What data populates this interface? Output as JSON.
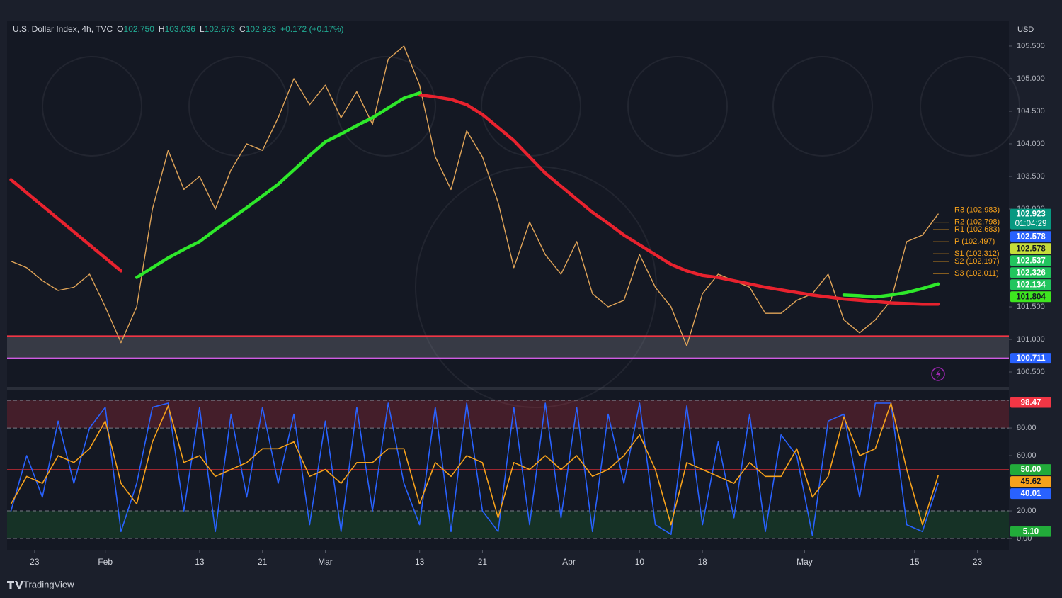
{
  "chart_data": [
    {
      "type": "line",
      "title": "U.S. Dollar Index, 4h, TVC",
      "ohlc": [
        {
          "key": "O",
          "value": {
            "value": 102.75,
            "label": "102.750"
          }
        },
        {
          "key": "H",
          "value": {
            "value": 103.036,
            "label": "103.036"
          }
        },
        {
          "key": "L",
          "value": {
            "value": 102.673,
            "label": "102.673"
          }
        },
        {
          "key": "C",
          "value": {
            "value": 102.923,
            "label": "102.923"
          }
        }
      ],
      "change": "+0.172 (+0.17%)",
      "currency": "USD",
      "x": [
        20,
        22,
        24,
        26,
        28,
        30,
        32,
        34,
        36,
        38,
        40,
        42,
        44,
        46,
        48,
        50,
        52,
        54,
        56,
        58,
        60,
        62,
        64,
        66,
        68,
        70,
        72,
        74,
        76,
        78,
        80,
        82,
        84,
        86,
        88,
        90,
        92,
        94,
        96,
        98,
        100,
        102,
        104,
        106,
        108,
        110,
        112,
        114,
        116,
        118,
        120,
        122,
        124,
        126,
        128,
        130,
        132,
        134,
        136,
        138
      ],
      "xlim": [
        19.5,
        147
      ],
      "ylim": [
        100.337,
        105.88
      ],
      "yticks": [
        {
          "value": 100.5,
          "label": "100.500"
        },
        {
          "value": 101,
          "label": "101.000"
        },
        {
          "value": 101.5,
          "label": "101.500"
        },
        {
          "value": 103,
          "label": "103.000"
        },
        {
          "value": 103.5,
          "label": "103.500"
        },
        {
          "value": 104,
          "label": "104.000"
        },
        {
          "value": 104.5,
          "label": "104.500"
        },
        {
          "value": 105,
          "label": "105.000"
        },
        {
          "value": 105.5,
          "label": "105.500"
        }
      ],
      "series": [
        {
          "color": "#e0a458",
          "values": [
            102.2,
            102.1,
            101.9,
            101.75,
            101.8,
            102.0,
            101.5,
            100.95,
            101.5,
            103.0,
            103.9,
            103.3,
            103.5,
            103.0,
            103.6,
            104.0,
            103.9,
            104.4,
            105.0,
            104.6,
            104.9,
            104.4,
            104.8,
            104.3,
            105.3,
            105.5,
            104.9,
            103.8,
            103.3,
            104.2,
            103.8,
            103.1,
            102.1,
            102.8,
            102.3,
            102.0,
            102.5,
            101.7,
            101.5,
            101.6,
            102.3,
            101.8,
            101.5,
            100.9,
            101.7,
            102.0,
            101.9,
            101.8,
            101.4,
            101.4,
            101.6,
            101.7,
            102.0,
            101.3,
            101.1,
            101.3,
            101.6,
            102.5,
            102.6,
            102.923
          ]
        },
        {
          "color": "#e8222e",
          "values": [
            103.45,
            103.25,
            103.05,
            102.85,
            102.65,
            102.45,
            102.25,
            102.05,
            null,
            null,
            null,
            null,
            null,
            null,
            null,
            null,
            null,
            null,
            null,
            null,
            null,
            null,
            null,
            null,
            null,
            null,
            104.75,
            104.72,
            104.68,
            104.6,
            104.45,
            104.25,
            104.05,
            103.8,
            103.55,
            103.35,
            103.15,
            102.95,
            102.78,
            102.6,
            102.45,
            102.3,
            102.15,
            102.05,
            101.98,
            101.95,
            101.9,
            101.85,
            101.8,
            101.76,
            101.72,
            101.68,
            101.65,
            101.62,
            101.6,
            101.58,
            101.56,
            101.55,
            101.54,
            101.54
          ]
        },
        {
          "color": "#2ee82a",
          "values": [
            null,
            null,
            null,
            null,
            null,
            null,
            null,
            null,
            101.95,
            102.1,
            102.25,
            102.38,
            102.5,
            102.68,
            102.85,
            103.02,
            103.2,
            103.38,
            103.6,
            103.82,
            104.03,
            104.15,
            104.28,
            104.4,
            104.55,
            104.7,
            104.78,
            null,
            null,
            null,
            null,
            null,
            null,
            null,
            null,
            null,
            null,
            null,
            null,
            null,
            null,
            null,
            null,
            null,
            null,
            null,
            null,
            null,
            null,
            null,
            null,
            null,
            null,
            101.68,
            101.67,
            101.65,
            101.68,
            101.72,
            101.78,
            101.85
          ]
        }
      ],
      "hlines": [
        {
          "value": 101.05,
          "color": "#f23645"
        },
        {
          "value": 100.711,
          "color": "#d05ce3"
        }
      ],
      "pivot_color": "#f7a21b",
      "pivots": [
        {
          "value": 102.983,
          "label": "R3 (102.983)"
        },
        {
          "value": 102.798,
          "label": "R2 (102.798)"
        },
        {
          "value": 102.683,
          "label": "R1 (102.683)"
        },
        {
          "value": 102.497,
          "label": "P (102.497)"
        },
        {
          "value": 102.312,
          "label": "S1 (102.312)"
        },
        {
          "value": 102.197,
          "label": "S2 (102.197)"
        },
        {
          "value": 102.011,
          "label": "S3 (102.011)"
        }
      ],
      "badges": [
        102.923,
        102.578,
        102.578,
        102.537,
        102.326,
        102.134,
        101.804,
        100.711
      ],
      "badge_colors": [
        "#089981",
        "#2962ff",
        "#c6dd3a",
        "#22c55e",
        "#22c55e",
        "#22c55e",
        "#3ee51f",
        "#2962ff"
      ],
      "countdown": "01:04:29"
    },
    {
      "type": "line",
      "x": [
        20,
        22,
        24,
        26,
        28,
        30,
        32,
        34,
        36,
        38,
        40,
        42,
        44,
        46,
        48,
        50,
        52,
        54,
        56,
        58,
        60,
        62,
        64,
        66,
        68,
        70,
        72,
        74,
        76,
        78,
        80,
        82,
        84,
        86,
        88,
        90,
        92,
        94,
        96,
        98,
        100,
        102,
        104,
        106,
        108,
        110,
        112,
        114,
        116,
        118,
        120,
        122,
        124,
        126,
        128,
        130,
        132,
        134,
        136,
        138
      ],
      "xlim": [
        19.5,
        147
      ],
      "ylim": [
        -5.1,
        102.6
      ],
      "yticks": [
        {
          "value": 0,
          "label": "0.00"
        },
        {
          "value": 20,
          "label": "20.00"
        },
        {
          "value": 60,
          "label": "60.00"
        },
        {
          "value": 80,
          "label": "80.00"
        }
      ],
      "xticks": [
        {
          "value": 23,
          "label": "23"
        },
        {
          "value": 32,
          "label": "Feb"
        },
        {
          "value": 44,
          "label": "13"
        },
        {
          "value": 52,
          "label": "21"
        },
        {
          "value": 60,
          "label": "Mar"
        },
        {
          "value": 72,
          "label": "13"
        },
        {
          "value": 80,
          "label": "21"
        },
        {
          "value": 91,
          "label": "Apr"
        },
        {
          "value": 100,
          "label": "10"
        },
        {
          "value": 108,
          "label": "18"
        },
        {
          "value": 121,
          "label": "May"
        },
        {
          "value": 135,
          "label": "15"
        },
        {
          "value": 143,
          "label": "23"
        }
      ],
      "series": [
        {
          "color": "#2962ff",
          "values": [
            20,
            60,
            30,
            85,
            40,
            80,
            95,
            5,
            40,
            95,
            98,
            20,
            95,
            5,
            90,
            30,
            95,
            40,
            90,
            10,
            85,
            5,
            95,
            20,
            98,
            40,
            10,
            95,
            5,
            98,
            20,
            5,
            95,
            10,
            98,
            15,
            95,
            5,
            90,
            40,
            98,
            10,
            3,
            96,
            10,
            70,
            15,
            90,
            5,
            75,
            60,
            2,
            85,
            90,
            30,
            98,
            98,
            10,
            5,
            40.01
          ]
        },
        {
          "color": "#f7a21b",
          "values": [
            25,
            45,
            40,
            60,
            55,
            65,
            85,
            40,
            25,
            70,
            96,
            55,
            60,
            45,
            50,
            55,
            65,
            65,
            70,
            45,
            50,
            40,
            55,
            55,
            65,
            65,
            25,
            55,
            45,
            60,
            55,
            15,
            55,
            50,
            60,
            50,
            60,
            45,
            50,
            60,
            75,
            50,
            10,
            55,
            50,
            45,
            40,
            55,
            45,
            45,
            65,
            30,
            45,
            88,
            60,
            65,
            98,
            50,
            10,
            45.62
          ]
        }
      ],
      "overbought": [
        80,
        100
      ],
      "oversold": [
        0,
        20
      ],
      "midline": 50,
      "badges": [
        98.47,
        {
          "value": 50,
          "label": "50.00"
        },
        45.62,
        40.01,
        {
          "value": 5.1,
          "label": "5.10"
        }
      ],
      "badge_colors": [
        "#f23645",
        "#22ab3a",
        "#f7a21b",
        "#2962ff",
        "#22ab3a"
      ]
    }
  ],
  "footer": {
    "brand": "TradingView"
  }
}
